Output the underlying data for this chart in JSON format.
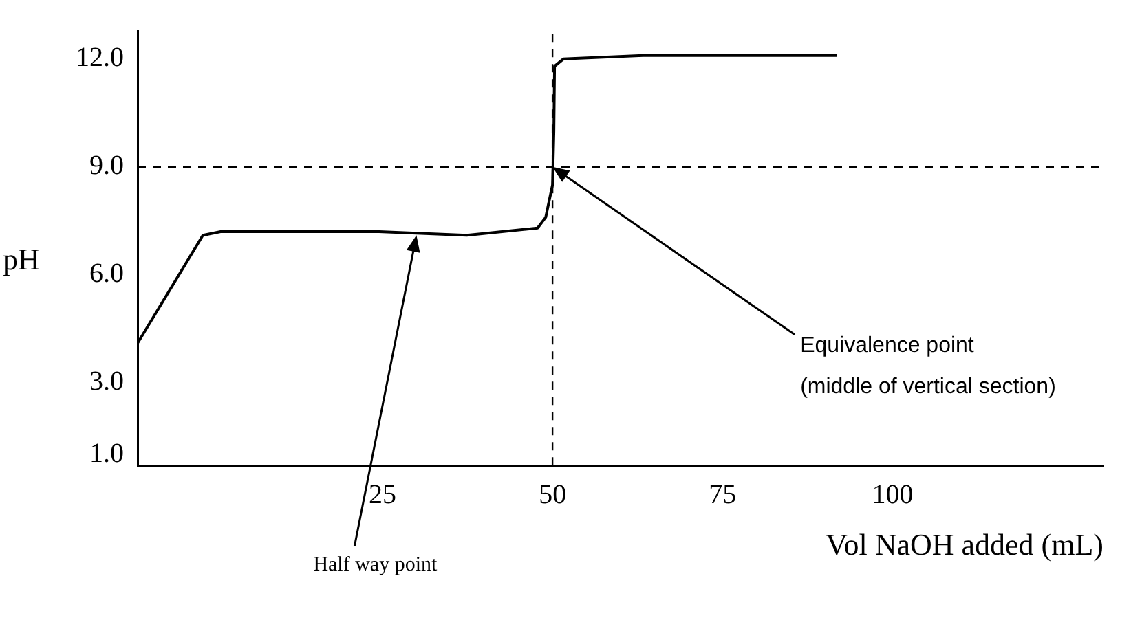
{
  "chart_data": {
    "type": "line",
    "xlabel": "Vol NaOH added (mL)",
    "ylabel": "pH",
    "series": [
      {
        "color": "#000000",
        "x": [
          -11,
          -1.4,
          1.2,
          24.5,
          37.4,
          47.8,
          49,
          50,
          50.2,
          50.3,
          51.6,
          63.3,
          91.8
        ],
        "values": [
          4.1,
          7.1,
          7.2,
          7.2,
          7.1,
          7.3,
          7.6,
          8.5,
          10,
          11.8,
          12,
          12.1,
          12.1
        ]
      }
    ],
    "xlim": [
      -11,
      131
    ],
    "xticks": [
      25,
      50,
      75,
      100
    ],
    "ylim": [
      0.7,
      12.8
    ],
    "yticks": [
      {
        "value": 1,
        "label": "1.0"
      },
      {
        "value": 3,
        "label": "3.0"
      },
      {
        "value": 6,
        "label": "6.0"
      },
      {
        "value": 9,
        "label": "9.0"
      },
      {
        "value": 12,
        "label": "12.0"
      }
    ],
    "ref_lines": [
      {
        "axis": "y",
        "value": 9,
        "line_style": "dashed"
      },
      {
        "axis": "x",
        "value": 50,
        "line_style": "dashed"
      }
    ],
    "annotations": [
      {
        "text": "Equivalence point\n(middle of vertical section)",
        "x": 50,
        "y": 9
      },
      {
        "text": "Half way point",
        "x": 30,
        "y": 7.1
      }
    ],
    "grid": false,
    "legend": false,
    "marker": "none",
    "line_style": "solid"
  }
}
